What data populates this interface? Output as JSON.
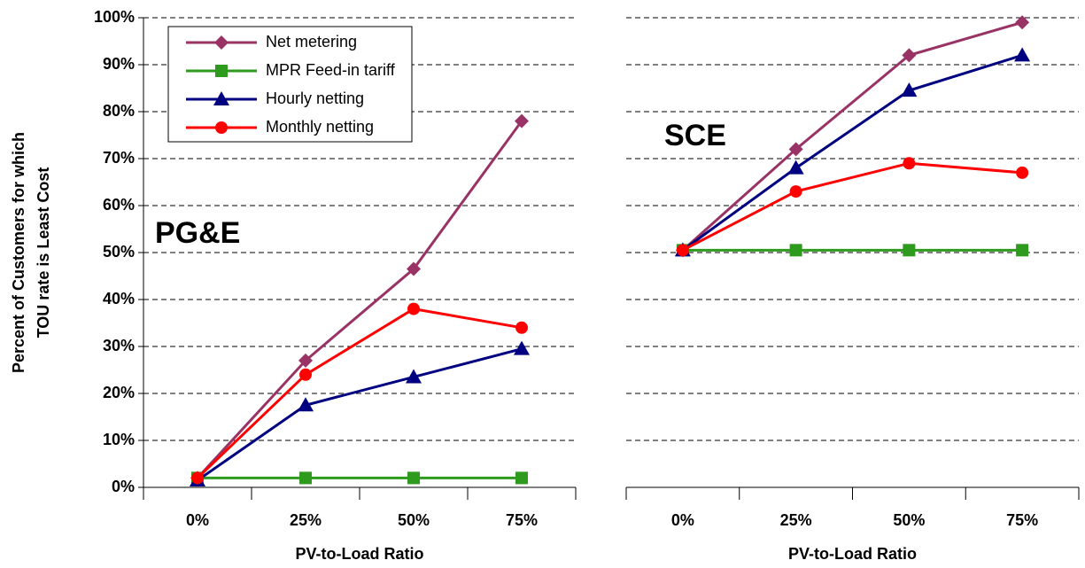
{
  "chart_data": [
    {
      "type": "line",
      "annotation": "PG&E",
      "xlabel": "PV-to-Load Ratio",
      "ylabel": [
        "Percent of Customers for which",
        "TOU rate is Least Cost"
      ],
      "categories": [
        "0%",
        "25%",
        "50%",
        "75%"
      ],
      "series": [
        {
          "name": "Net metering",
          "color": "#993366",
          "marker": "diamond",
          "values": [
            2,
            27,
            46.5,
            78
          ]
        },
        {
          "name": "MPR Feed-in tariff",
          "color": "#2e9a1e",
          "marker": "square",
          "values": [
            2,
            2,
            2,
            2
          ]
        },
        {
          "name": "Hourly netting",
          "color": "#000080",
          "marker": "triangle",
          "values": [
            1.5,
            17.5,
            23.5,
            29.5
          ]
        },
        {
          "name": "Monthly netting",
          "color": "#ff0000",
          "marker": "circle",
          "values": [
            2,
            24,
            38,
            34
          ]
        }
      ],
      "ylim": [
        0,
        100
      ],
      "yticks": [
        {
          "value": 0,
          "label": "0%"
        },
        {
          "value": 10,
          "label": "10%"
        },
        {
          "value": 20,
          "label": "20%"
        },
        {
          "value": 30,
          "label": "30%"
        },
        {
          "value": 40,
          "label": "40%"
        },
        {
          "value": 50,
          "label": "50%"
        },
        {
          "value": 60,
          "label": "60%"
        },
        {
          "value": 70,
          "label": "70%"
        },
        {
          "value": 80,
          "label": "80%"
        },
        {
          "value": 90,
          "label": "90%"
        },
        {
          "value": 100,
          "label": "100%"
        }
      ],
      "grid": true,
      "legend": "upper left",
      "y_axis_line": true
    },
    {
      "type": "line",
      "annotation": "SCE",
      "xlabel": "PV-to-Load Ratio",
      "categories": [
        "0%",
        "25%",
        "50%",
        "75%"
      ],
      "series": [
        {
          "color": "#993366",
          "marker": "diamond",
          "values": [
            50.5,
            72,
            92,
            99
          ]
        },
        {
          "color": "#2e9a1e",
          "marker": "square",
          "values": [
            50.5,
            50.5,
            50.5,
            50.5
          ]
        },
        {
          "color": "#000080",
          "marker": "triangle",
          "values": [
            50.5,
            68,
            84.5,
            92
          ]
        },
        {
          "color": "#ff0000",
          "marker": "circle",
          "values": [
            50.5,
            63,
            69,
            67
          ]
        }
      ],
      "ylim": [
        0,
        100
      ],
      "yticks": [
        0,
        10,
        20,
        30,
        40,
        50,
        60,
        70,
        80,
        90,
        100
      ],
      "grid": true,
      "y_axis_line": false
    }
  ]
}
